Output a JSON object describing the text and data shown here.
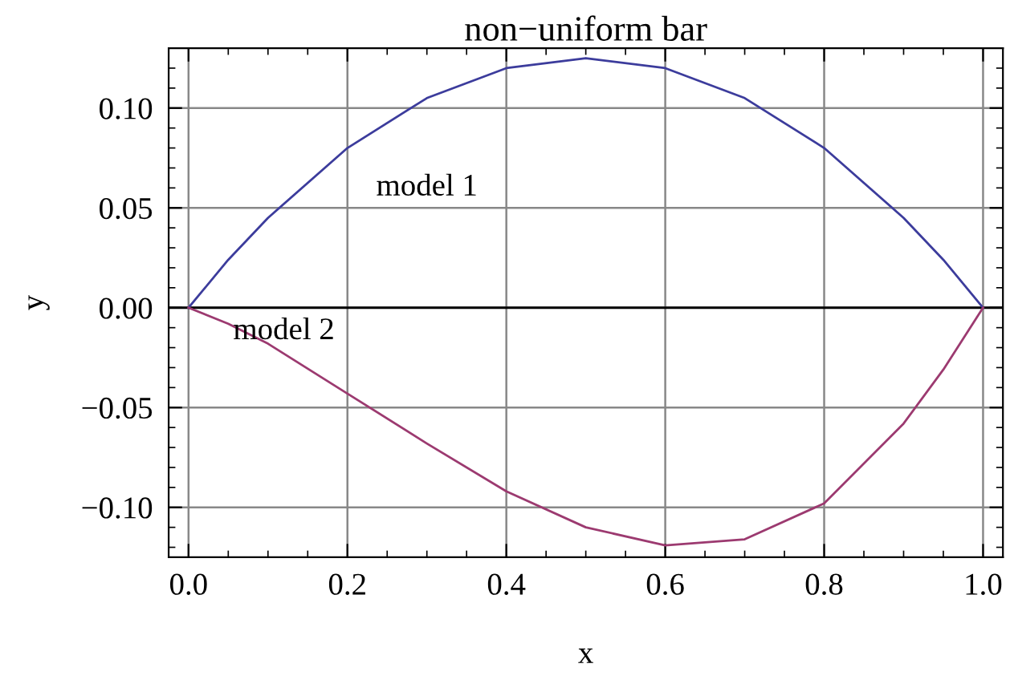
{
  "chart_data": {
    "type": "line",
    "title": "non−uniform bar",
    "xlabel": "x",
    "ylabel": "y",
    "x": [
      0,
      0.05,
      0.1,
      0.2,
      0.3,
      0.4,
      0.5,
      0.6,
      0.7,
      0.8,
      0.9,
      0.95,
      1.0
    ],
    "series": [
      {
        "name": "model 1",
        "color": "#3c3c9c",
        "values": [
          0,
          0.024,
          0.045,
          0.08,
          0.105,
          0.12,
          0.125,
          0.12,
          0.105,
          0.08,
          0.045,
          0.024,
          0
        ]
      },
      {
        "name": "model 2",
        "color": "#9c3a70",
        "values": [
          0,
          -0.008,
          -0.018,
          -0.043,
          -0.068,
          -0.092,
          -0.11,
          -0.119,
          -0.116,
          -0.098,
          -0.058,
          -0.031,
          0
        ]
      }
    ],
    "xlim": [
      -0.025,
      1.025
    ],
    "ylim": [
      -0.125,
      0.13
    ],
    "xticks": [
      {
        "value": 0,
        "label": "0.0"
      },
      {
        "value": 0.2,
        "label": "0.2"
      },
      {
        "value": 0.4,
        "label": "0.4"
      },
      {
        "value": 0.6,
        "label": "0.6"
      },
      {
        "value": 0.8,
        "label": "0.8"
      },
      {
        "value": 1.0,
        "label": "1.0"
      }
    ],
    "yticks": [
      {
        "value": -0.1,
        "label": "−0.10"
      },
      {
        "value": -0.05,
        "label": "−0.05"
      },
      {
        "value": 0,
        "label": "0.00"
      },
      {
        "value": 0.05,
        "label": "0.05"
      },
      {
        "value": 0.1,
        "label": "0.10"
      }
    ],
    "ref_lines": [
      {
        "axis": "y",
        "value": 0,
        "color": "#000000"
      }
    ],
    "grid": true,
    "marker": "none",
    "line_style": "solid",
    "legend": false
  }
}
